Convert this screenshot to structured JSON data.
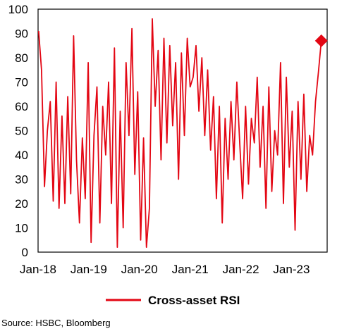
{
  "chart_data": {
    "type": "line",
    "ylim": [
      0,
      100
    ],
    "yticks": [
      0,
      10,
      20,
      30,
      40,
      50,
      60,
      70,
      80,
      90,
      100
    ],
    "xlim": [
      "2018-01-01",
      "2023-09-15"
    ],
    "xticks": [
      {
        "date": "2018-01-01",
        "label": "Jan-18"
      },
      {
        "date": "2019-01-01",
        "label": "Jan-19"
      },
      {
        "date": "2020-01-01",
        "label": "Jan-20"
      },
      {
        "date": "2021-01-01",
        "label": "Jan-21"
      },
      {
        "date": "2022-01-01",
        "label": "Jan-22"
      },
      {
        "date": "2023-01-01",
        "label": "Jan-23"
      }
    ],
    "grid": false,
    "legend": "bottom-center",
    "series": [
      {
        "name": "Cross-asset RSI",
        "color": "#e30613",
        "x": [
          "2018-01-05",
          "2018-01-26",
          "2018-02-16",
          "2018-03-09",
          "2018-03-30",
          "2018-04-20",
          "2018-05-11",
          "2018-06-01",
          "2018-06-22",
          "2018-07-13",
          "2018-08-03",
          "2018-08-24",
          "2018-09-14",
          "2018-10-05",
          "2018-10-26",
          "2018-11-16",
          "2018-12-07",
          "2018-12-28",
          "2019-01-18",
          "2019-02-08",
          "2019-03-01",
          "2019-03-22",
          "2019-04-12",
          "2019-05-03",
          "2019-05-24",
          "2019-06-14",
          "2019-07-05",
          "2019-07-26",
          "2019-08-16",
          "2019-09-06",
          "2019-09-27",
          "2019-10-18",
          "2019-11-08",
          "2019-11-29",
          "2019-12-20",
          "2020-01-10",
          "2020-01-31",
          "2020-02-21",
          "2020-03-13",
          "2020-04-03",
          "2020-04-24",
          "2020-05-15",
          "2020-06-05",
          "2020-06-26",
          "2020-07-17",
          "2020-08-07",
          "2020-08-28",
          "2020-09-18",
          "2020-10-09",
          "2020-10-30",
          "2020-11-20",
          "2020-12-11",
          "2021-01-01",
          "2021-01-22",
          "2021-02-12",
          "2021-03-05",
          "2021-03-26",
          "2021-04-16",
          "2021-05-07",
          "2021-05-28",
          "2021-06-18",
          "2021-07-09",
          "2021-07-30",
          "2021-08-20",
          "2021-09-10",
          "2021-10-01",
          "2021-10-22",
          "2021-11-12",
          "2021-12-03",
          "2021-12-24",
          "2022-01-14",
          "2022-02-04",
          "2022-02-25",
          "2022-03-18",
          "2022-04-08",
          "2022-04-29",
          "2022-05-20",
          "2022-06-10",
          "2022-07-01",
          "2022-07-22",
          "2022-08-12",
          "2022-09-02",
          "2022-09-23",
          "2022-10-14",
          "2022-11-04",
          "2022-11-25",
          "2022-12-16",
          "2023-01-06",
          "2023-01-27",
          "2023-02-17",
          "2023-03-10",
          "2023-03-31",
          "2023-04-21",
          "2023-05-12",
          "2023-06-02",
          "2023-06-23",
          "2023-07-14",
          "2023-08-04"
        ],
        "values": [
          91,
          75,
          27,
          50,
          62,
          21,
          70,
          18,
          56,
          20,
          64,
          24,
          89,
          38,
          12,
          47,
          22,
          78,
          4,
          48,
          68,
          12,
          60,
          40,
          70,
          20,
          84,
          2,
          58,
          10,
          78,
          48,
          92,
          32,
          66,
          5,
          47,
          2,
          18,
          96,
          60,
          83,
          38,
          88,
          45,
          85,
          52,
          78,
          30,
          82,
          48,
          88,
          68,
          72,
          85,
          58,
          80,
          48,
          75,
          42,
          64,
          22,
          60,
          12,
          55,
          30,
          62,
          38,
          70,
          45,
          22,
          60,
          28,
          55,
          45,
          72,
          35,
          60,
          18,
          68,
          25,
          50,
          40,
          78,
          20,
          72,
          35,
          58,
          9,
          62,
          30,
          65,
          25,
          48,
          40,
          62,
          74,
          87
        ]
      }
    ],
    "highlight": {
      "x": "2023-08-04",
      "y": 87,
      "marker": "diamond"
    }
  },
  "source": "Source: HSBC, Bloomberg"
}
